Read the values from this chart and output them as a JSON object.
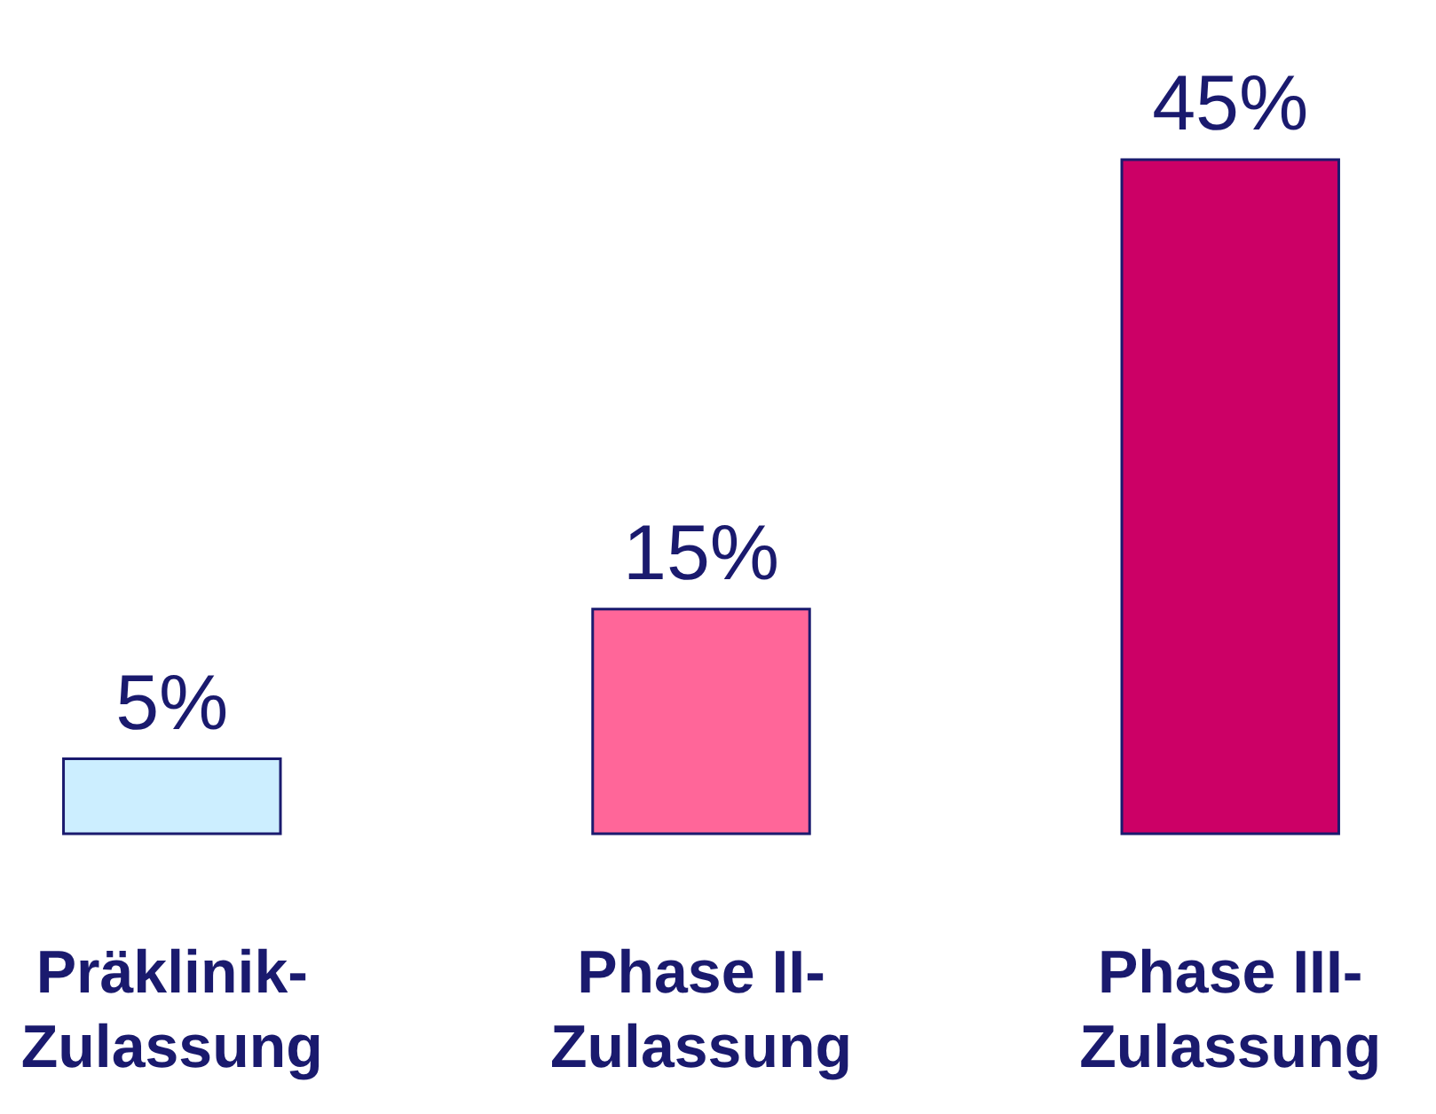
{
  "chart_data": {
    "type": "bar",
    "categories": [
      "Präklinik-\nZulassung",
      "Phase II-\nZulassung",
      "Phase III-\nZulassung"
    ],
    "values": [
      5,
      15,
      45
    ],
    "colors": [
      "#cceeff",
      "#ff6699",
      "#cc0066"
    ],
    "value_labels": [
      "5%",
      "15%",
      "45%"
    ],
    "grid": false,
    "legend": false
  }
}
